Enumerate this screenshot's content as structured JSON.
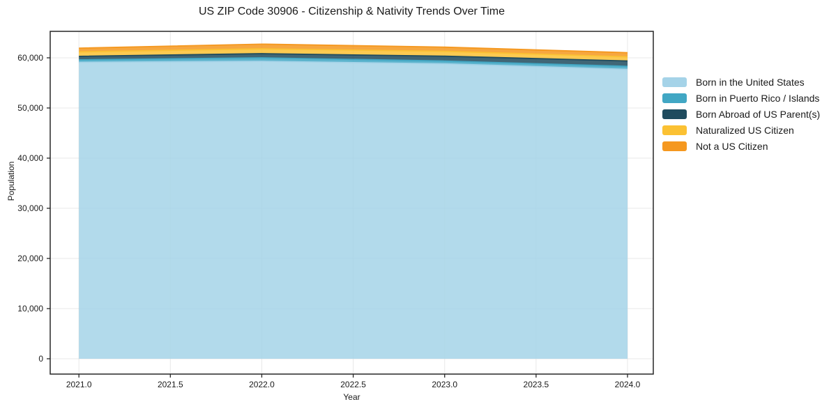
{
  "title": "US ZIP Code 30906 - Citizenship & Nativity Trends Over Time",
  "colors": {
    "background": "#ffffff",
    "text": "#1a1a1a",
    "grid": "#d9d9d9",
    "spine": "#262626"
  },
  "chart_data": {
    "type": "area",
    "stacked": true,
    "title": "US ZIP Code 30906 - Citizenship & Nativity Trends Over Time",
    "xlabel": "Year",
    "ylabel": "Population",
    "x": [
      2021,
      2022,
      2023,
      2024
    ],
    "series": [
      {
        "name": "Born in the United States",
        "color": "#A5D3E8",
        "values": [
          59100,
          59300,
          58800,
          57700
        ]
      },
      {
        "name": "Born in Puerto Rico / Islands",
        "color": "#41A7C4",
        "values": [
          500,
          700,
          560,
          600
        ]
      },
      {
        "name": "Born Abroad of US Parent(s)",
        "color": "#1F4B5E",
        "values": [
          700,
          830,
          970,
          1070
        ]
      },
      {
        "name": "Naturalized US Citizen",
        "color": "#FBC133",
        "values": [
          890,
          970,
          970,
          830
        ]
      },
      {
        "name": "Not a US Citizen",
        "color": "#F5981F",
        "values": [
          740,
          930,
          830,
          830
        ]
      }
    ],
    "xlim": [
      2020.843,
      2024.141
    ],
    "ylim": [
      -3056,
      65278
    ],
    "xticks": {
      "values": [
        2021.0,
        2021.5,
        2022.0,
        2022.5,
        2023.0,
        2023.5,
        2024.0
      ],
      "labels": [
        "2021.0",
        "2021.5",
        "2022.0",
        "2022.5",
        "2023.0",
        "2023.5",
        "2024.0"
      ]
    },
    "yticks": {
      "values": [
        0,
        10000,
        20000,
        30000,
        40000,
        50000,
        60000
      ],
      "labels": [
        "0",
        "10,000",
        "20,000",
        "30,000",
        "40,000",
        "50,000",
        "60,000"
      ]
    },
    "grid": true,
    "legend_position": "right",
    "fill_opacity": 0.85
  }
}
